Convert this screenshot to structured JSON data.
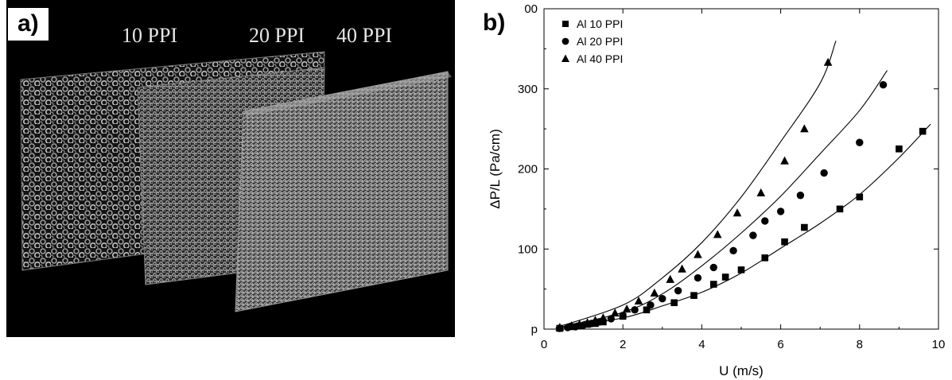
{
  "panel_a": {
    "label": "a)",
    "sample_labels": [
      "10 PPI",
      "20 PPI",
      "40 PPI"
    ]
  },
  "panel_b": {
    "label": "b)"
  },
  "colors": {
    "photo_background": "#000000",
    "foam": "#bdbdbd",
    "ink": "#000000"
  },
  "chart_data": {
    "type": "scatter",
    "xlabel": "U (m/s)",
    "ylabel": "ΔP/L (Pa/cm)",
    "xlim": [
      0,
      10
    ],
    "ylim": [
      0,
      400
    ],
    "x_ticks": [
      "0",
      "2",
      "4",
      "6",
      "8",
      "10"
    ],
    "y_ticks": [
      "p",
      "100",
      "200",
      "300",
      "00"
    ],
    "legend_position": "top-left",
    "grid": false,
    "fit_lines": true,
    "series": [
      {
        "name": "Al 10 PPI",
        "marker": "square",
        "x": [
          0.4,
          0.7,
          0.9,
          1.1,
          1.3,
          1.5,
          2.0,
          2.6,
          3.3,
          3.8,
          4.3,
          4.6,
          5.0,
          5.6,
          6.1,
          6.6,
          7.5,
          8.0,
          9.0,
          9.6
        ],
        "y": [
          1,
          3,
          4,
          6,
          7,
          9,
          16,
          24,
          33,
          42,
          56,
          65,
          74,
          89,
          109,
          127,
          150,
          165,
          225,
          247
        ],
        "fit": [
          [
            0.3,
            1
          ],
          [
            2,
            14
          ],
          [
            3,
            29
          ],
          [
            4,
            46
          ],
          [
            5,
            70
          ],
          [
            6,
            101
          ],
          [
            7,
            132
          ],
          [
            8,
            168
          ],
          [
            9,
            214
          ],
          [
            9.8,
            256
          ]
        ]
      },
      {
        "name": "Al 20 PPI",
        "marker": "circle",
        "x": [
          0.4,
          0.6,
          0.8,
          1.0,
          1.2,
          1.4,
          1.7,
          2.0,
          2.3,
          2.7,
          3.0,
          3.4,
          3.9,
          4.3,
          4.8,
          5.3,
          5.6,
          6.0,
          6.5,
          7.1,
          8.0,
          8.6
        ],
        "y": [
          1,
          2,
          3,
          5,
          7,
          9,
          13,
          17,
          24,
          30,
          38,
          48,
          64,
          77,
          98,
          117,
          135,
          147,
          167,
          195,
          233,
          305
        ],
        "fit": [
          [
            0.3,
            1
          ],
          [
            2,
            21
          ],
          [
            3,
            44
          ],
          [
            4,
            79
          ],
          [
            5,
            120
          ],
          [
            6,
            166
          ],
          [
            7,
            219
          ],
          [
            8,
            273
          ],
          [
            8.7,
            323
          ]
        ]
      },
      {
        "name": "Al 40 PPI",
        "marker": "triangle",
        "x": [
          0.4,
          0.7,
          0.9,
          1.1,
          1.3,
          1.5,
          1.8,
          2.1,
          2.4,
          2.8,
          3.2,
          3.5,
          3.9,
          4.4,
          4.9,
          5.5,
          6.1,
          6.6,
          7.2
        ],
        "y": [
          2,
          4,
          6,
          8,
          11,
          14,
          20,
          25,
          35,
          45,
          62,
          75,
          93,
          118,
          145,
          170,
          210,
          250,
          333
        ],
        "fit": [
          [
            0.3,
            2
          ],
          [
            2,
            30
          ],
          [
            3,
            64
          ],
          [
            4,
            108
          ],
          [
            5,
            165
          ],
          [
            6,
            234
          ],
          [
            7,
            307
          ],
          [
            7.4,
            360
          ]
        ]
      }
    ]
  }
}
